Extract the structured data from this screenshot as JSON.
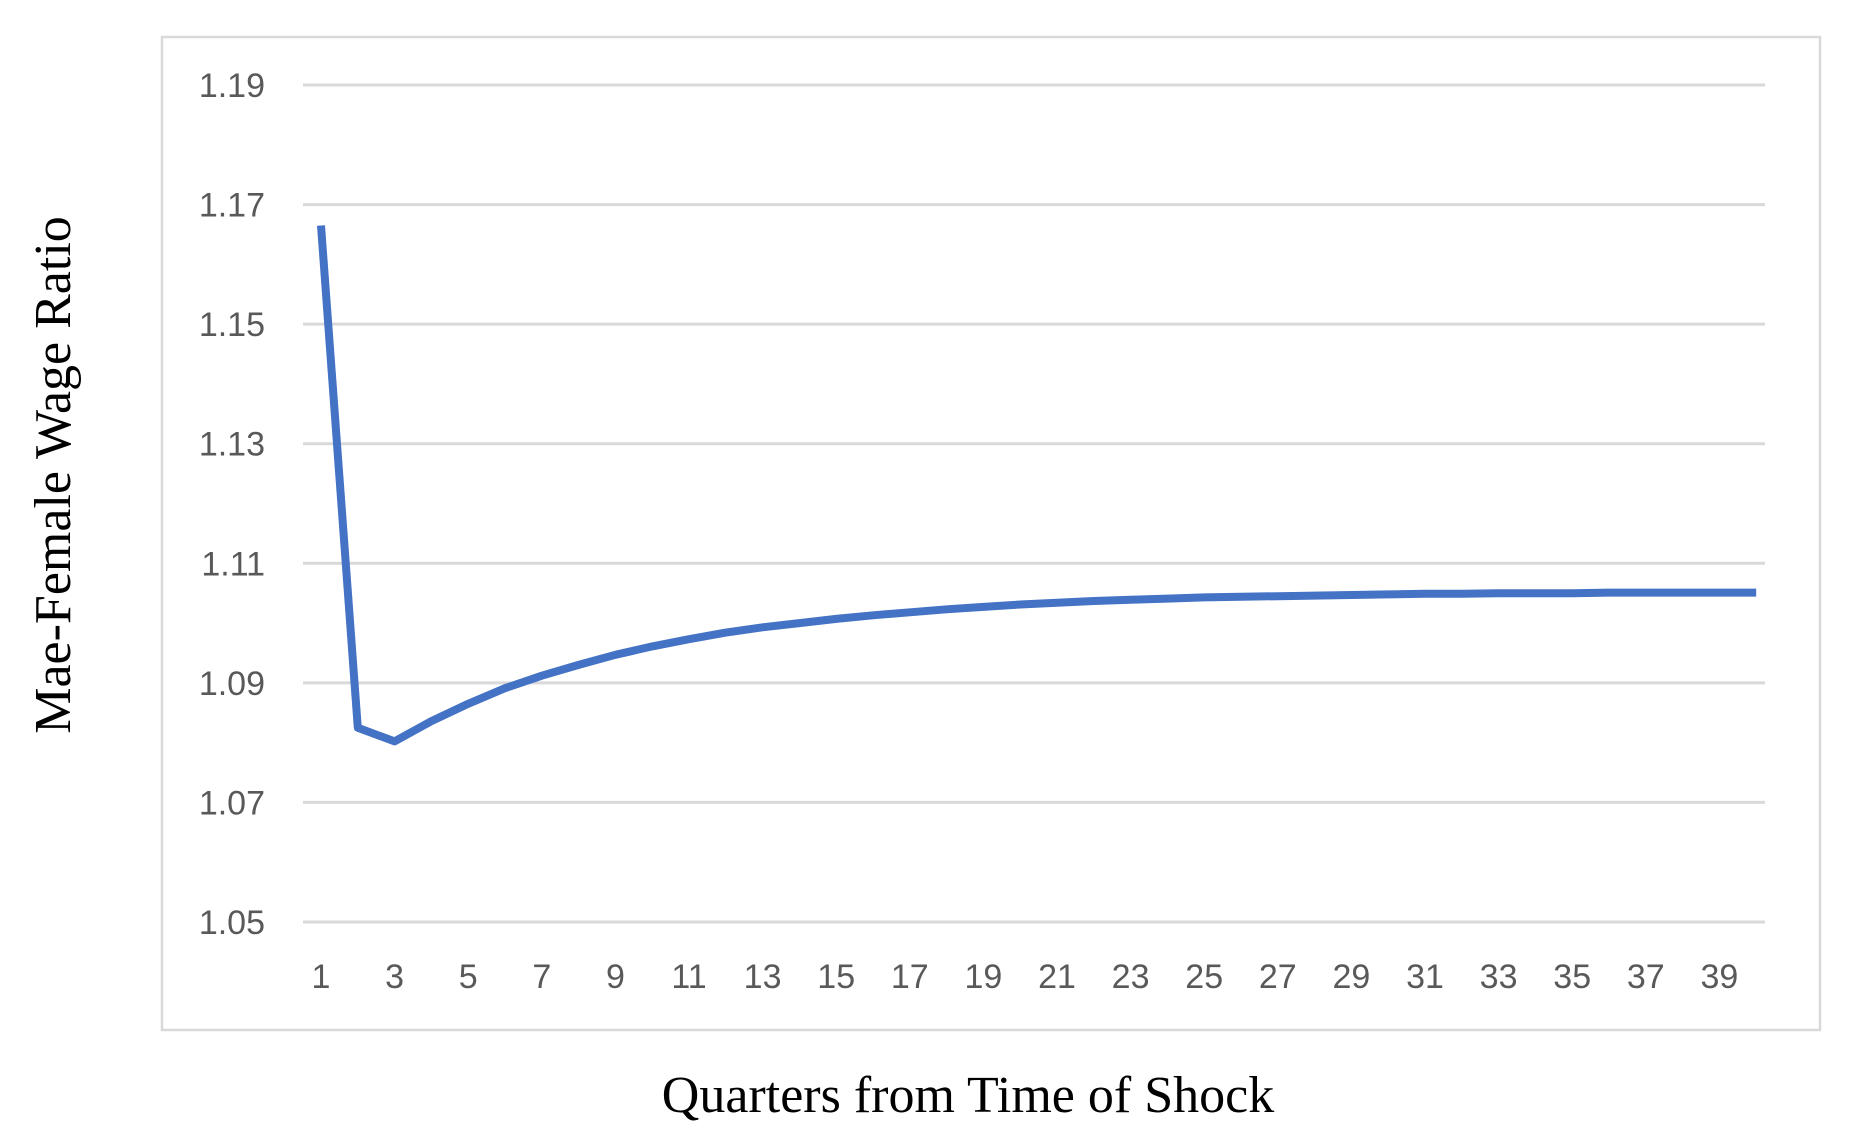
{
  "chart_data": {
    "type": "line",
    "xlabel": "Quarters from Time of Shock",
    "ylabel": "Mae-Female Wage Ratio",
    "x": [
      1,
      2,
      3,
      4,
      5,
      6,
      7,
      8,
      9,
      10,
      11,
      12,
      13,
      14,
      15,
      16,
      17,
      18,
      19,
      20,
      21,
      22,
      23,
      24,
      25,
      26,
      27,
      28,
      29,
      30,
      31,
      32,
      33,
      34,
      35,
      36,
      37,
      38,
      39,
      40
    ],
    "x_tick_labels": [
      "1",
      "3",
      "5",
      "7",
      "9",
      "11",
      "13",
      "15",
      "17",
      "19",
      "21",
      "23",
      "25",
      "27",
      "29",
      "31",
      "33",
      "35",
      "37",
      "39"
    ],
    "y_tick_labels": [
      "1.19",
      "1.17",
      "1.15",
      "1.13",
      "1.11",
      "1.09",
      "1.07",
      "1.05"
    ],
    "y_ticks": [
      1.19,
      1.17,
      1.15,
      1.13,
      1.11,
      1.09,
      1.07,
      1.05
    ],
    "ylim": [
      1.05,
      1.19
    ],
    "grid": true,
    "series": [
      {
        "color": "#4472c4",
        "values": [
          1.1665,
          1.0825,
          1.0802,
          1.0836,
          1.0865,
          1.0891,
          1.0912,
          1.093,
          1.0947,
          1.0961,
          1.0973,
          1.0984,
          1.0993,
          1.1,
          1.1007,
          1.1013,
          1.1018,
          1.1023,
          1.1027,
          1.1031,
          1.1034,
          1.1037,
          1.1039,
          1.1041,
          1.1043,
          1.1044,
          1.1045,
          1.1046,
          1.1047,
          1.1048,
          1.1049,
          1.1049,
          1.105,
          1.105,
          1.105,
          1.1051,
          1.1051,
          1.1051,
          1.1051,
          1.1051
        ]
      }
    ]
  }
}
